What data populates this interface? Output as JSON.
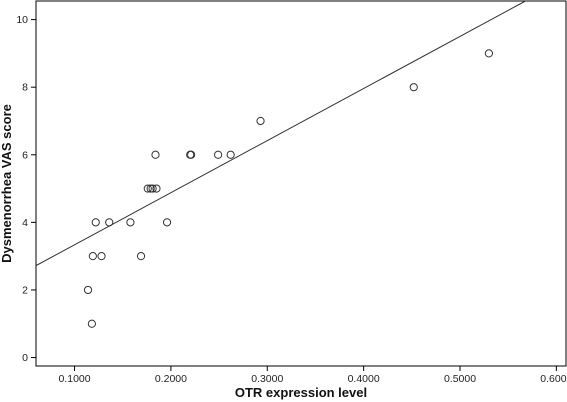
{
  "chart_data": {
    "type": "scatter",
    "title": "",
    "xlabel": "OTR expression level",
    "ylabel": "Dysmenorrhea VAS score",
    "xlim": [
      0.06,
      0.61
    ],
    "ylim": [
      -0.25,
      10.55
    ],
    "x_ticks": [
      0.1,
      0.2,
      0.3,
      0.4,
      0.5,
      0.6
    ],
    "x_tick_labels": [
      "0.1000",
      "0.2000",
      "0.3000",
      "0.4000",
      "0.5000",
      "0.6000"
    ],
    "y_ticks": [
      0,
      2,
      4,
      6,
      8,
      10
    ],
    "y_tick_labels": [
      "0",
      "2",
      "4",
      "6",
      "8",
      "10"
    ],
    "grid": false,
    "series": [
      {
        "marker": "open-circle",
        "color": "#333333",
        "points": [
          {
            "x": 0.114,
            "y": 2
          },
          {
            "x": 0.118,
            "y": 1
          },
          {
            "x": 0.119,
            "y": 3
          },
          {
            "x": 0.122,
            "y": 4
          },
          {
            "x": 0.128,
            "y": 3
          },
          {
            "x": 0.136,
            "y": 4
          },
          {
            "x": 0.158,
            "y": 4
          },
          {
            "x": 0.169,
            "y": 3
          },
          {
            "x": 0.176,
            "y": 5
          },
          {
            "x": 0.179,
            "y": 5
          },
          {
            "x": 0.181,
            "y": 5
          },
          {
            "x": 0.184,
            "y": 6
          },
          {
            "x": 0.185,
            "y": 5
          },
          {
            "x": 0.196,
            "y": 4
          },
          {
            "x": 0.22,
            "y": 6
          },
          {
            "x": 0.221,
            "y": 6
          },
          {
            "x": 0.249,
            "y": 6
          },
          {
            "x": 0.262,
            "y": 6
          },
          {
            "x": 0.293,
            "y": 7
          },
          {
            "x": 0.452,
            "y": 8
          },
          {
            "x": 0.53,
            "y": 9
          }
        ]
      }
    ],
    "fit_line": {
      "type": "linear",
      "color": "#333333",
      "start": {
        "x": 0.06,
        "y": 2.72
      },
      "end": {
        "x": 0.568,
        "y": 10.55
      }
    }
  }
}
